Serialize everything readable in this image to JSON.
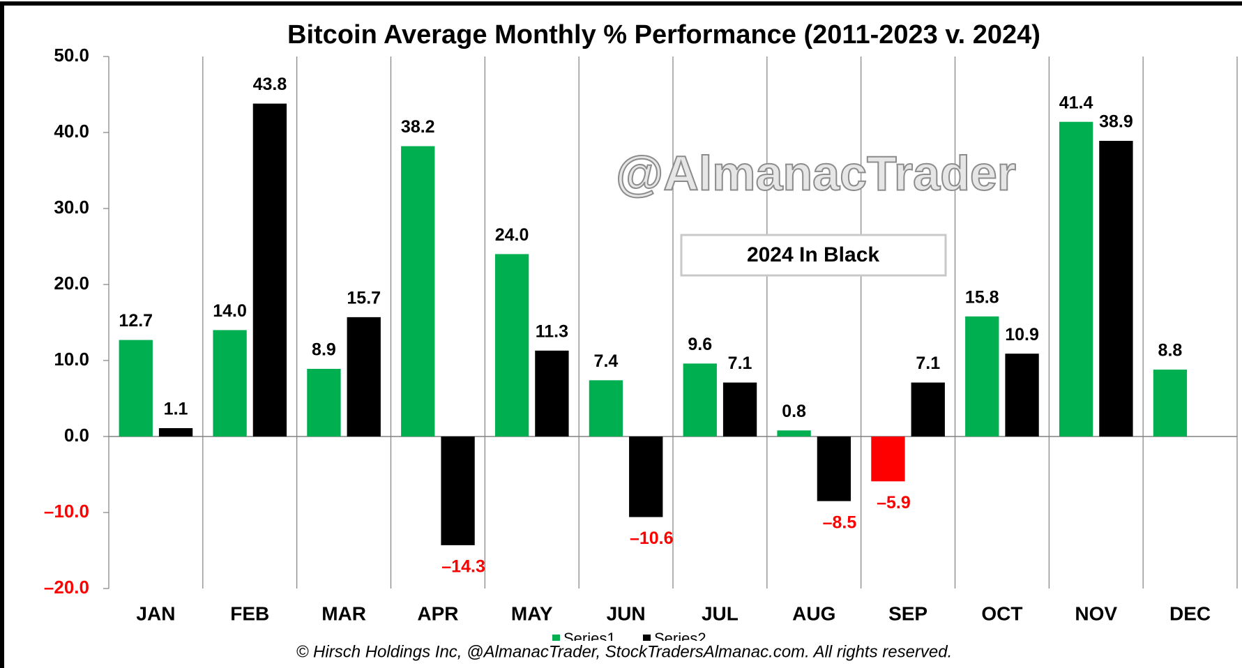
{
  "chart_data": {
    "type": "bar",
    "title": "Bitcoin Average Monthly % Performance (2011-2023 v. 2024)",
    "categories": [
      "JAN",
      "FEB",
      "MAR",
      "APR",
      "MAY",
      "JUN",
      "JUL",
      "AUG",
      "SEP",
      "OCT",
      "NOV",
      "DEC"
    ],
    "series": [
      {
        "name": "Series1",
        "color": "#00b050",
        "negative_color": "#ff0000",
        "values": [
          12.7,
          14.0,
          8.9,
          38.2,
          24.0,
          7.4,
          9.6,
          0.8,
          -5.9,
          15.8,
          41.4,
          8.8
        ],
        "value_labels": [
          "12.7",
          "14.0",
          "8.9",
          "38.2",
          "24.0",
          "7.4",
          "9.6",
          "0.8",
          "–5.9",
          "15.8",
          "41.4",
          "8.8"
        ]
      },
      {
        "name": "Series2",
        "color": "#000000",
        "values": [
          1.1,
          43.8,
          15.7,
          -14.3,
          11.3,
          -10.6,
          7.1,
          -8.5,
          7.1,
          10.9,
          38.9,
          null
        ],
        "value_labels": [
          "1.1",
          "43.8",
          "15.7",
          "–14.3",
          "11.3",
          "–10.6",
          "7.1",
          "–8.5",
          "7.1",
          "10.9",
          "38.9",
          null
        ]
      }
    ],
    "negative_label_color": "#ff0000",
    "ylim": [
      -20,
      50
    ],
    "yticks": [
      {
        "value": -20,
        "label": "–20.0"
      },
      {
        "value": -10,
        "label": "–10.0"
      },
      {
        "value": 0,
        "label": "0.0"
      },
      {
        "value": 10,
        "label": "10.0"
      },
      {
        "value": 20,
        "label": "20.0"
      },
      {
        "value": 30,
        "label": "30.0"
      },
      {
        "value": 40,
        "label": "40.0"
      },
      {
        "value": 50,
        "label": "50.0"
      }
    ],
    "watermark": "@AlmanacTrader",
    "annotation": "2024 In Black",
    "footer": "© Hirsch Holdings Inc, @AlmanacTrader, StockTradersAlmanac.com. All rights reserved."
  }
}
